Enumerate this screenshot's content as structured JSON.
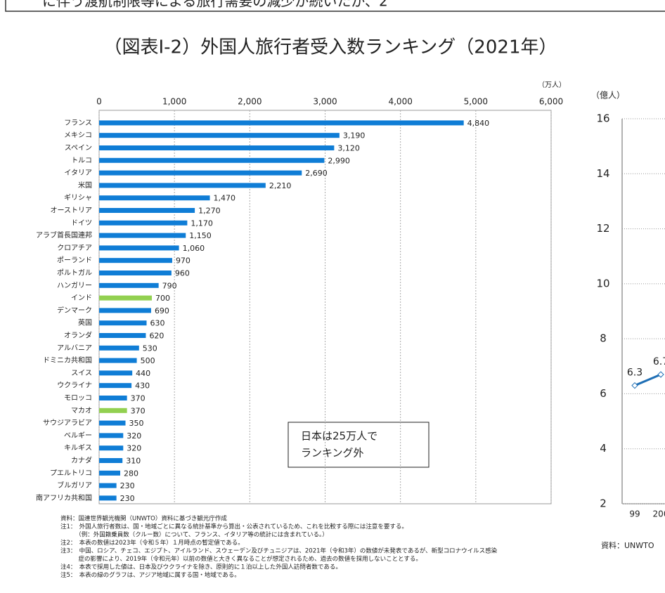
{
  "header_text": "に伴う渡航制限等による旅行需要の減少が続いたが、2",
  "chart_data": [
    {
      "type": "bar",
      "orientation": "horizontal",
      "title": "（図表Ⅰ-2）外国人旅行者受入数ランキング（2021年）",
      "unit_label": "（万人）",
      "categories": [
        "フランス",
        "メキシコ",
        "スペイン",
        "トルコ",
        "イタリア",
        "米国",
        "ギリシャ",
        "オーストリア",
        "ドイツ",
        "アラブ首長国連邦",
        "クロアチア",
        "ポーランド",
        "ポルトガル",
        "ハンガリー",
        "インド",
        "デンマーク",
        "英国",
        "オランダ",
        "アルバニア",
        "ドミニカ共和国",
        "スイス",
        "ウクライナ",
        "モロッコ",
        "マカオ",
        "サウジアラビア",
        "ベルギー",
        "キルギス",
        "カナダ",
        "プエルトリコ",
        "ブルガリア",
        "南アフリカ共和国"
      ],
      "values": [
        4840,
        3190,
        3120,
        2990,
        2690,
        2210,
        1470,
        1270,
        1170,
        1150,
        1060,
        970,
        960,
        790,
        700,
        690,
        630,
        620,
        530,
        500,
        440,
        430,
        370,
        370,
        350,
        320,
        320,
        310,
        280,
        230,
        230
      ],
      "value_labels": [
        "4,840",
        "3,190",
        "3,120",
        "2,990",
        "2,690",
        "2,210",
        "1,470",
        "1,270",
        "1,170",
        "1,150",
        "1,060",
        "970",
        "960",
        "790",
        "700",
        "690",
        "630",
        "620",
        "530",
        "500",
        "440",
        "430",
        "370",
        "370",
        "350",
        "320",
        "320",
        "310",
        "280",
        "230",
        "230"
      ],
      "colors": [
        "#0f7dd6",
        "#0f7dd6",
        "#0f7dd6",
        "#0f7dd6",
        "#0f7dd6",
        "#0f7dd6",
        "#0f7dd6",
        "#0f7dd6",
        "#0f7dd6",
        "#0f7dd6",
        "#0f7dd6",
        "#0f7dd6",
        "#0f7dd6",
        "#0f7dd6",
        "#92d050",
        "#0f7dd6",
        "#0f7dd6",
        "#0f7dd6",
        "#0f7dd6",
        "#0f7dd6",
        "#0f7dd6",
        "#0f7dd6",
        "#0f7dd6",
        "#92d050",
        "#0f7dd6",
        "#0f7dd6",
        "#0f7dd6",
        "#0f7dd6",
        "#0f7dd6",
        "#0f7dd6",
        "#0f7dd6"
      ],
      "xlim": [
        0,
        6000
      ],
      "xticks": [
        0,
        {
          "value": 1000,
          "label": "1,000"
        },
        {
          "value": 2000,
          "label": "2,000"
        },
        {
          "value": 3000,
          "label": "3,000"
        },
        {
          "value": 4000,
          "label": "4,000"
        },
        {
          "value": 5000,
          "label": "5,000"
        },
        {
          "value": 6000,
          "label": "6,000"
        }
      ],
      "grid": true,
      "annotation": [
        "日本は25万人で",
        "ランキング外"
      ],
      "notes": [
        "資料：国連世界観光機関（UNWTO）資料に基づき観光庁作成",
        "注1：　外国人旅行者数は、国・地域ごとに異なる統計基準から算出・公表されているため、これを比較する際には注意を要する。",
        "　　　（例：外国籍乗員数（クルー数）について、フランス、イタリア等の統計には含まれている。）",
        "注2：　本表の数値は2023年（令和５年）１月時点の暫定値である。",
        "注3：　中国、ロシア、チェコ、エジプト、アイルランド、スウェーデン及びチュニジアは、2021年（令和3年）の数値が未発表であるが、新型コロナウイルス感染",
        "　　　症の影響により、2019年（令和元年）以前の数値と大きく異なることが想定されるため、過去の数値を採用しないこととする。",
        "注4：　本表で採用した値は、日本及びウクライナを除き、原則的に１泊以上した外国人訪問者数である。",
        "注5：　本表の緑のグラフは、アジア地域に属する国・地域である。"
      ]
    },
    {
      "type": "line",
      "unit_label": "（億人）",
      "categories": [
        "99",
        "200"
      ],
      "values": [
        6.3,
        6.7
      ],
      "color": "#1f6fb5",
      "ylim": [
        2,
        16
      ],
      "yticks": [
        2,
        4,
        6,
        8,
        10,
        12,
        14,
        16
      ],
      "grid": true,
      "source": "資料：UNWTO"
    }
  ]
}
